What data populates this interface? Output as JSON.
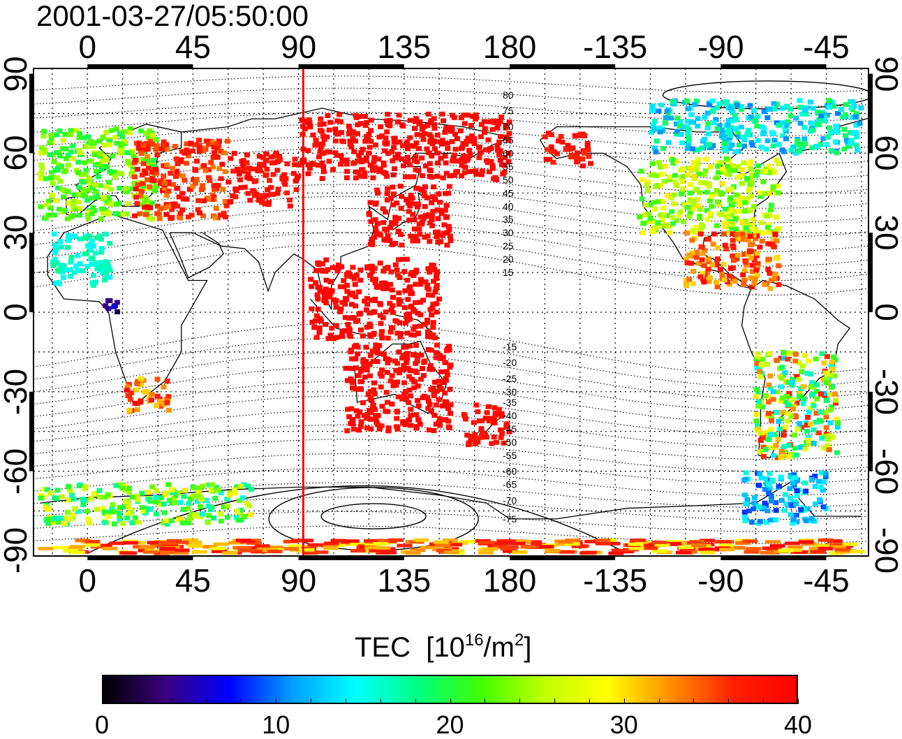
{
  "title": "2001-03-27/05:50:00",
  "axes": {
    "x_ticks": [
      "0",
      "45",
      "90",
      "135",
      "180",
      "-135",
      "-90",
      "-45"
    ],
    "x_tick_lon": [
      0,
      45,
      90,
      135,
      180,
      225,
      270,
      315
    ],
    "y_ticks": [
      "90",
      "60",
      "30",
      "0",
      "-30",
      "-60",
      "-90"
    ],
    "y_tick_lat": [
      90,
      60,
      30,
      0,
      -30,
      -60,
      -90
    ],
    "lon_range": [
      -23,
      333
    ],
    "lat_range": [
      -92,
      92
    ],
    "grid": true
  },
  "terminator_lon": 92,
  "contour_labels": [
    "80",
    "75",
    "70",
    "65",
    "60",
    "55",
    "50",
    "45",
    "40",
    "35",
    "30",
    "25",
    "20",
    "15",
    "-15",
    "-20",
    "-25",
    "-30",
    "-35",
    "-40",
    "-45",
    "-50",
    "-55",
    "-60",
    "-65",
    "-70",
    "-75"
  ],
  "contour_label_lat": [
    82,
    76,
    70,
    65,
    60,
    55,
    50,
    45,
    40,
    35,
    30,
    25,
    20,
    15,
    -13,
    -19,
    -25,
    -30,
    -34,
    -39,
    -44,
    -49,
    -54,
    -60,
    -65,
    -71,
    -78
  ],
  "colorbar": {
    "title": "TEC",
    "unit_base": "10",
    "unit_exp": "16",
    "unit_mid": "/m",
    "unit_exp2": "2",
    "min": 0,
    "max": 40,
    "tick_labels": [
      "0",
      "10",
      "20",
      "30",
      "40"
    ],
    "tick_values": [
      0,
      10,
      20,
      30,
      40
    ],
    "colors": [
      "#000000",
      "#3a0080",
      "#0000ff",
      "#00a0ff",
      "#00ffff",
      "#00ff80",
      "#40ff00",
      "#c0ff00",
      "#ffff00",
      "#ff9000",
      "#ff2000",
      "#ff0000"
    ]
  },
  "tec_regions": [
    {
      "name": "europe",
      "lon": [
        -20,
        30
      ],
      "lat": [
        35,
        70
      ],
      "tec": [
        19,
        27
      ]
    },
    {
      "name": "eastern-europe",
      "lon": [
        20,
        60
      ],
      "lat": [
        35,
        65
      ],
      "tec": [
        33,
        40
      ]
    },
    {
      "name": "central-asia",
      "lon": [
        60,
        90
      ],
      "lat": [
        40,
        60
      ],
      "tec": [
        37,
        40
      ]
    },
    {
      "name": "east-asia",
      "lon": [
        120,
        155
      ],
      "lat": [
        25,
        48
      ],
      "tec": [
        38,
        40
      ]
    },
    {
      "name": "siberia",
      "lon": [
        90,
        180
      ],
      "lat": [
        50,
        75
      ],
      "tec": [
        38,
        40
      ]
    },
    {
      "name": "alaska",
      "lon": [
        195,
        215
      ],
      "lat": [
        55,
        68
      ],
      "tec": [
        36,
        40
      ]
    },
    {
      "name": "north-america",
      "lon": [
        235,
        295
      ],
      "lat": [
        30,
        58
      ],
      "tec": [
        20,
        30
      ]
    },
    {
      "name": "canada-arctic",
      "lon": [
        240,
        330
      ],
      "lat": [
        60,
        80
      ],
      "tec": [
        10,
        20
      ]
    },
    {
      "name": "central-america",
      "lon": [
        255,
        295
      ],
      "lat": [
        8,
        30
      ],
      "tec": [
        30,
        40
      ]
    },
    {
      "name": "south-america",
      "lon": [
        285,
        320
      ],
      "lat": [
        -55,
        -15
      ],
      "tec": [
        12,
        38
      ]
    },
    {
      "name": "southern-africa",
      "lon": [
        15,
        35
      ],
      "lat": [
        -38,
        -25
      ],
      "tec": [
        30,
        40
      ]
    },
    {
      "name": "indonesia",
      "lon": [
        95,
        150
      ],
      "lat": [
        -10,
        20
      ],
      "tec": [
        38,
        40
      ]
    },
    {
      "name": "australia",
      "lon": [
        110,
        155
      ],
      "lat": [
        -45,
        -12
      ],
      "tec": [
        38,
        40
      ]
    },
    {
      "name": "new-zealand",
      "lon": [
        160,
        180
      ],
      "lat": [
        -50,
        -35
      ],
      "tec": [
        37,
        40
      ]
    },
    {
      "name": "antarctic-coast",
      "lon": [
        -20,
        70
      ],
      "lat": [
        -80,
        -65
      ],
      "tec": [
        15,
        30
      ]
    },
    {
      "name": "south-pole-band",
      "lon": [
        -20,
        333
      ],
      "lat": [
        -91,
        -86
      ],
      "tec": [
        28,
        40
      ]
    },
    {
      "name": "equatorial-africa",
      "lon": [
        5,
        15
      ],
      "lat": [
        0,
        5
      ],
      "tec": [
        0,
        8
      ]
    },
    {
      "name": "west-africa-points",
      "lon": [
        -15,
        10
      ],
      "lat": [
        10,
        30
      ],
      "tec": [
        14,
        18
      ]
    },
    {
      "name": "antarctic-drake",
      "lon": [
        280,
        315
      ],
      "lat": [
        -80,
        -60
      ],
      "tec": [
        8,
        16
      ]
    }
  ]
}
